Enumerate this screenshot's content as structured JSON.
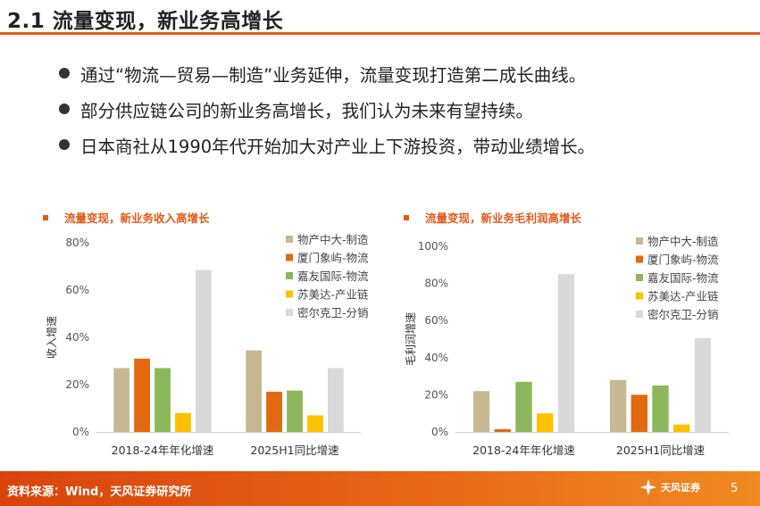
{
  "slide": {
    "title": "2.1 流量变现，新业务高增长",
    "bullets": [
      "通过“物流—贸易—制造”业务延伸，流量变现打造第二成长曲线。",
      "部分供应链公司的新业务高增长，我们认为未来有望持续。",
      "日本商社从1990年代开始加大对产业上下游投资，带动业绩增长。"
    ]
  },
  "colors": {
    "accent": "#e05a1a",
    "series": [
      "#c5b994",
      "#e2690f",
      "#8cb75a",
      "#ffc000",
      "#d9d9d9"
    ]
  },
  "chart_data": [
    {
      "type": "bar",
      "title": "流量变现，新业务收入高增长",
      "ylabel": "收入增速",
      "xlabel": "",
      "categories": [
        "2018-24年年化增速",
        "2025H1同比增速"
      ],
      "yticks": [
        "0%",
        "20%",
        "40%",
        "60%",
        "80%"
      ],
      "ylim": [
        0,
        80
      ],
      "series": [
        {
          "name": "物产中大-制造",
          "values": [
            27,
            34.5
          ]
        },
        {
          "name": "厦门象屿-物流",
          "values": [
            31,
            17
          ]
        },
        {
          "name": "嘉友国际-物流",
          "values": [
            27,
            17.5
          ]
        },
        {
          "name": "苏美达-产业链",
          "values": [
            8,
            7
          ]
        },
        {
          "name": "密尔克卫-分销",
          "values": [
            68.5,
            27
          ]
        }
      ],
      "legend": "top-right"
    },
    {
      "type": "bar",
      "title": "流量变现，新业务毛利润高增长",
      "ylabel": "毛利润增速",
      "xlabel": "",
      "categories": [
        "2018-24年年化增速",
        "2025H1同比增速"
      ],
      "yticks": [
        "0%",
        "20%",
        "40%",
        "60%",
        "80%",
        "100%"
      ],
      "ylim": [
        0,
        100
      ],
      "series": [
        {
          "name": "物产中大-制造",
          "values": [
            22,
            28
          ]
        },
        {
          "name": "厦门象屿-物流",
          "values": [
            1.5,
            20
          ]
        },
        {
          "name": "嘉友国际-物流",
          "values": [
            27,
            25
          ]
        },
        {
          "name": "苏美达-产业链",
          "values": [
            10,
            4
          ]
        },
        {
          "name": "密尔克卫-分销",
          "values": [
            85,
            50.5
          ]
        }
      ],
      "legend": "top-right"
    }
  ],
  "footer": {
    "source": "资料来源：Wind，天风证券研究所",
    "logo_text": "天风证券",
    "page_number": "5"
  }
}
